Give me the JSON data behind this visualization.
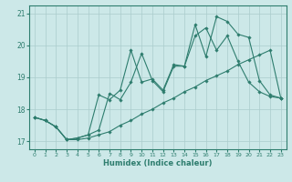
{
  "title": "",
  "xlabel": "Humidex (Indice chaleur)",
  "xlim": [
    -0.5,
    23.5
  ],
  "ylim": [
    16.75,
    21.25
  ],
  "yticks": [
    17,
    18,
    19,
    20,
    21
  ],
  "xticks": [
    0,
    1,
    2,
    3,
    4,
    5,
    6,
    7,
    8,
    9,
    10,
    11,
    12,
    13,
    14,
    15,
    16,
    17,
    18,
    19,
    20,
    21,
    22,
    23
  ],
  "bg_color": "#cce8e8",
  "line_color": "#2e7d6e",
  "grid_color": "#aacccc",
  "series": [
    {
      "x": [
        0,
        1,
        2,
        3,
        4,
        5,
        6,
        7,
        8,
        9,
        10,
        11,
        12,
        13,
        14,
        15,
        16,
        17,
        18,
        19,
        20,
        21,
        22,
        23
      ],
      "y": [
        17.75,
        17.65,
        17.45,
        17.05,
        17.05,
        17.1,
        17.2,
        17.3,
        17.5,
        17.65,
        17.85,
        18.0,
        18.2,
        18.35,
        18.55,
        18.7,
        18.9,
        19.05,
        19.2,
        19.4,
        19.55,
        19.7,
        19.85,
        18.35
      ]
    },
    {
      "x": [
        0,
        1,
        2,
        3,
        4,
        5,
        6,
        7,
        8,
        9,
        10,
        11,
        12,
        13,
        14,
        15,
        16,
        17,
        18,
        19,
        20,
        21,
        22,
        23
      ],
      "y": [
        17.75,
        17.65,
        17.45,
        17.05,
        17.1,
        17.2,
        18.45,
        18.3,
        18.6,
        19.85,
        18.85,
        18.95,
        18.6,
        19.4,
        19.35,
        20.3,
        20.55,
        19.85,
        20.3,
        19.5,
        18.85,
        18.55,
        18.4,
        18.35
      ]
    },
    {
      "x": [
        0,
        1,
        2,
        3,
        4,
        5,
        6,
        7,
        8,
        9,
        10,
        11,
        12,
        13,
        14,
        15,
        16,
        17,
        18,
        19,
        20,
        21,
        22,
        23
      ],
      "y": [
        17.75,
        17.65,
        17.45,
        17.05,
        17.1,
        17.2,
        17.35,
        18.5,
        18.3,
        18.85,
        19.75,
        18.9,
        18.55,
        19.35,
        19.35,
        20.65,
        19.65,
        20.9,
        20.75,
        20.35,
        20.25,
        18.9,
        18.45,
        18.35
      ]
    }
  ],
  "xlabel_fontsize": 6.0,
  "tick_fontsize": 4.5,
  "ytick_fontsize": 5.5,
  "marker": "D",
  "markersize": 1.8,
  "linewidth": 0.8
}
